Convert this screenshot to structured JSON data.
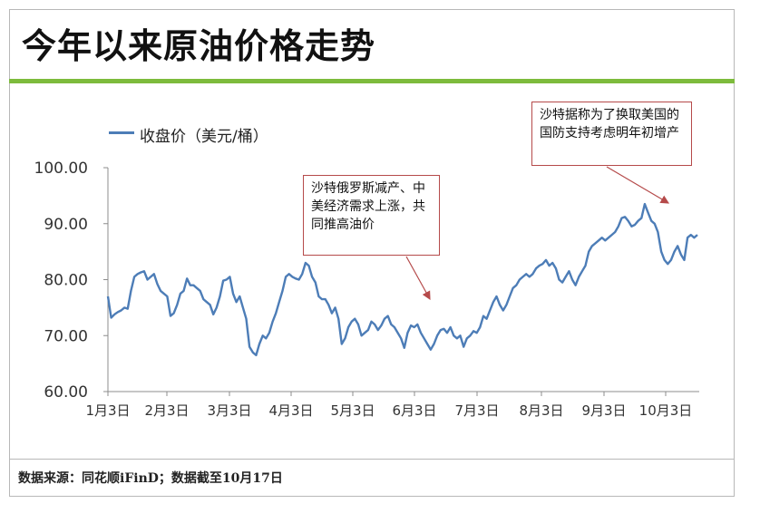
{
  "title": "今年以来原油价格走势",
  "legend": "收盘价（美元/桶）",
  "source": "数据来源：同花顺iFinD；数据截至10月17日",
  "colors": {
    "series": "#4d7db7",
    "accent_rule": "#7dbb3c",
    "annotation_border": "#b54a4a"
  },
  "annotations": [
    {
      "text": "沙特俄罗斯减产、中美经济需求上涨，共同推高油价",
      "point_at": "6月10日"
    },
    {
      "text": "沙特据称为了换取美国的国防支持考虑明年初增产",
      "point_at": "10月1日"
    }
  ],
  "chart_data": {
    "type": "line",
    "ylim": [
      60,
      100
    ],
    "yticks": [
      "60.00",
      "70.00",
      "80.00",
      "90.00",
      "100.00"
    ],
    "xticks": [
      "1月3日",
      "2月3日",
      "3月3日",
      "4月3日",
      "5月3日",
      "6月3日",
      "7月3日",
      "8月3日",
      "9月3日",
      "10月3日"
    ],
    "xlabel": "",
    "ylabel": "",
    "grid": false,
    "legend_position": "top-left",
    "series": [
      {
        "name": "收盘价（美元/桶）",
        "values": [
          77.0,
          73.2,
          73.8,
          74.2,
          74.5,
          75.0,
          74.8,
          78.0,
          80.5,
          81.0,
          81.3,
          81.5,
          80.0,
          80.5,
          81.0,
          79.2,
          78.0,
          77.5,
          77.0,
          73.5,
          74.0,
          75.5,
          77.5,
          78.0,
          80.2,
          79.0,
          79.0,
          78.5,
          78.0,
          76.5,
          76.0,
          75.5,
          73.8,
          75.0,
          77.0,
          79.8,
          80.0,
          80.5,
          77.5,
          76.0,
          77.0,
          75.0,
          73.0,
          68.0,
          67.0,
          66.5,
          68.5,
          70.0,
          69.5,
          70.5,
          72.5,
          74.0,
          76.0,
          78.0,
          80.5,
          81.0,
          80.5,
          80.2,
          80.0,
          81.0,
          83.0,
          82.5,
          80.5,
          79.5,
          77.0,
          76.5,
          76.5,
          75.5,
          74.0,
          75.0,
          73.0,
          68.5,
          69.5,
          71.5,
          72.5,
          73.0,
          72.0,
          70.0,
          70.5,
          71.0,
          72.5,
          72.0,
          71.0,
          71.8,
          73.0,
          73.5,
          72.0,
          71.5,
          70.5,
          69.5,
          67.8,
          70.5,
          71.8,
          71.5,
          72.0,
          70.5,
          69.5,
          68.5,
          67.5,
          68.5,
          70.0,
          71.0,
          71.2,
          70.5,
          71.5,
          70.0,
          69.5,
          70.0,
          68.0,
          69.5,
          70.0,
          70.8,
          70.5,
          71.5,
          73.5,
          73.0,
          74.5,
          76.0,
          77.0,
          75.5,
          74.5,
          75.5,
          77.0,
          78.5,
          79.0,
          80.0,
          80.5,
          81.0,
          80.5,
          81.0,
          82.0,
          82.5,
          82.8,
          83.5,
          82.5,
          83.0,
          82.0,
          80.0,
          79.5,
          80.5,
          81.5,
          80.0,
          79.0,
          80.5,
          81.5,
          82.5,
          85.0,
          86.0,
          86.5,
          87.0,
          87.5,
          87.0,
          87.5,
          88.0,
          88.5,
          89.5,
          91.0,
          91.2,
          90.5,
          89.5,
          89.8,
          90.5,
          91.0,
          93.5,
          92.0,
          90.5,
          90.0,
          88.5,
          85.0,
          83.5,
          82.8,
          83.5,
          85.0,
          86.0,
          84.5,
          83.5,
          87.5,
          88.0,
          87.5,
          88.0
        ]
      }
    ]
  }
}
